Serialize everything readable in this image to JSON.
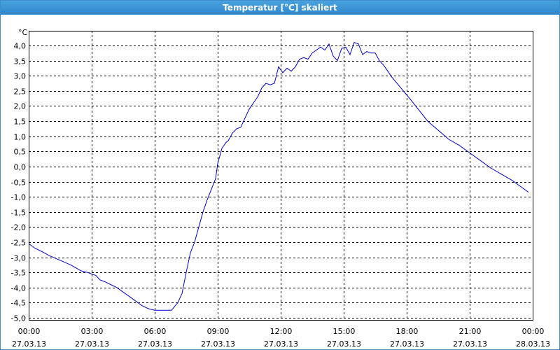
{
  "window": {
    "title": "Temperatur [°C] skaliert"
  },
  "chart_data": {
    "type": "line",
    "title": "Temperatur [°C] skaliert",
    "ylabel": "°C",
    "xlabel": "",
    "ylim": [
      -5.0,
      4.0
    ],
    "xlim": [
      0,
      24
    ],
    "grid": true,
    "y_ticks": [
      {
        "value": 4.0,
        "label": "4,0"
      },
      {
        "value": 3.5,
        "label": "3,5"
      },
      {
        "value": 3.0,
        "label": "3,0"
      },
      {
        "value": 2.5,
        "label": "2,5"
      },
      {
        "value": 2.0,
        "label": "2,0"
      },
      {
        "value": 1.5,
        "label": "1,5"
      },
      {
        "value": 1.0,
        "label": "1,0"
      },
      {
        "value": 0.5,
        "label": "0,5"
      },
      {
        "value": 0.0,
        "label": "0,0"
      },
      {
        "value": -0.5,
        "label": "-0,5"
      },
      {
        "value": -1.0,
        "label": "-1,0"
      },
      {
        "value": -1.5,
        "label": "-1,5"
      },
      {
        "value": -2.0,
        "label": "-2,0"
      },
      {
        "value": -2.5,
        "label": "-2,5"
      },
      {
        "value": -3.0,
        "label": "-3,0"
      },
      {
        "value": -3.5,
        "label": "-3,5"
      },
      {
        "value": -4.0,
        "label": "-4,0"
      },
      {
        "value": -4.5,
        "label": "-4,5"
      },
      {
        "value": -5.0,
        "label": "-5,0"
      }
    ],
    "x_ticks": [
      {
        "hour": 0,
        "time": "00:00",
        "date": "27.03.13"
      },
      {
        "hour": 3,
        "time": "03:00",
        "date": "27.03.13"
      },
      {
        "hour": 6,
        "time": "06:00",
        "date": "27.03.13"
      },
      {
        "hour": 9,
        "time": "09:00",
        "date": "27.03.13"
      },
      {
        "hour": 12,
        "time": "12:00",
        "date": "27.03.13"
      },
      {
        "hour": 15,
        "time": "15:00",
        "date": "27.03.13"
      },
      {
        "hour": 18,
        "time": "18:00",
        "date": "27.03.13"
      },
      {
        "hour": 21,
        "time": "21:00",
        "date": "27.03.13"
      },
      {
        "hour": 24,
        "time": "00:00",
        "date": "28.03.13"
      }
    ],
    "series": [
      {
        "color": "#0000cc",
        "x": [
          0.0,
          0.3,
          0.6,
          1.0,
          1.5,
          2.0,
          2.5,
          2.8,
          3.2,
          3.4,
          3.6,
          3.9,
          4.2,
          4.5,
          4.8,
          5.1,
          5.4,
          5.7,
          6.0,
          6.4,
          6.8,
          7.1,
          7.3,
          7.5,
          7.7,
          7.9,
          8.1,
          8.3,
          8.5,
          8.7,
          8.9,
          9.0,
          9.2,
          9.4,
          9.5,
          9.7,
          9.9,
          10.1,
          10.3,
          10.5,
          10.7,
          10.9,
          11.1,
          11.3,
          11.5,
          11.7,
          11.9,
          12.1,
          12.3,
          12.5,
          12.7,
          12.9,
          13.1,
          13.3,
          13.5,
          13.7,
          13.9,
          14.1,
          14.3,
          14.5,
          14.7,
          14.9,
          15.1,
          15.3,
          15.5,
          15.7,
          15.9,
          16.1,
          16.3,
          16.5,
          16.7,
          16.9,
          17.1,
          17.3,
          17.6,
          17.9,
          18.2,
          18.6,
          19.0,
          19.5,
          20.0,
          20.5,
          21.0,
          21.5,
          22.0,
          22.5,
          23.0,
          23.5,
          23.8
        ],
        "y": [
          -2.55,
          -2.7,
          -2.8,
          -2.95,
          -3.1,
          -3.25,
          -3.45,
          -3.5,
          -3.6,
          -3.75,
          -3.8,
          -3.9,
          -4.0,
          -4.15,
          -4.3,
          -4.45,
          -4.6,
          -4.7,
          -4.75,
          -4.75,
          -4.75,
          -4.5,
          -4.2,
          -3.5,
          -2.85,
          -2.5,
          -2.0,
          -1.5,
          -1.1,
          -0.75,
          -0.4,
          0.1,
          0.6,
          0.8,
          0.85,
          1.1,
          1.25,
          1.3,
          1.6,
          1.9,
          2.1,
          2.3,
          2.6,
          2.75,
          2.7,
          2.75,
          3.3,
          3.1,
          3.25,
          3.15,
          3.3,
          3.55,
          3.6,
          3.55,
          3.75,
          3.85,
          3.95,
          3.85,
          4.05,
          3.65,
          3.5,
          3.9,
          3.95,
          3.7,
          4.1,
          4.05,
          3.7,
          3.8,
          3.75,
          3.75,
          3.5,
          3.35,
          3.15,
          2.95,
          2.7,
          2.45,
          2.2,
          1.85,
          1.5,
          1.2,
          0.9,
          0.7,
          0.45,
          0.2,
          -0.05,
          -0.25,
          -0.45,
          -0.7,
          -0.85
        ]
      }
    ]
  }
}
